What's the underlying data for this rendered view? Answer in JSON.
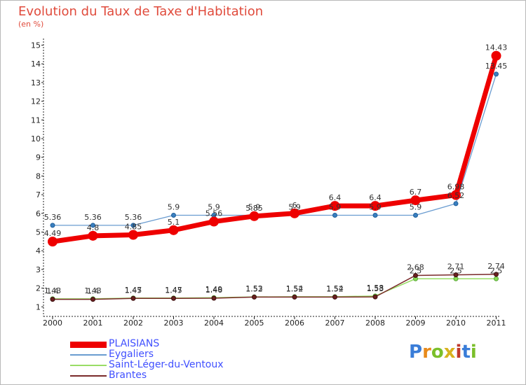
{
  "title": "Evolution du Taux de Taxe d'Habitation",
  "subtitle": "(en %)",
  "logo": {
    "text": "Proxiti",
    "colors": [
      "#3a7dd8",
      "#e88a1a",
      "#7bbf2a",
      "#d8b21e",
      "#c0392b",
      "#3a7dd8",
      "#7bbf2a"
    ]
  },
  "chart_data": {
    "type": "line",
    "title": "Evolution du Taux de Taxe d'Habitation",
    "ylabel": "(en %)",
    "xlabel": "",
    "categories": [
      "2000",
      "2001",
      "2002",
      "2003",
      "2004",
      "2005",
      "2006",
      "2007",
      "2008",
      "2009",
      "2010",
      "2011"
    ],
    "ylim": [
      0,
      15
    ],
    "yticks": [
      "1",
      "2",
      "3",
      "4",
      "5",
      "6",
      "7",
      "8",
      "9",
      "10",
      "11",
      "12",
      "13",
      "14",
      "15"
    ],
    "series": [
      {
        "name": "PLAISIANS",
        "color": "#ee0000",
        "values": [
          4.49,
          4.8,
          4.85,
          5.1,
          5.56,
          5.85,
          6,
          6.4,
          6.4,
          6.7,
          6.98,
          14.43
        ],
        "labels": [
          "4.49",
          "4.8",
          "4.85",
          "5.1",
          "5.56",
          "5.85",
          "6",
          "6.4",
          "6.4",
          "6.7",
          "6.98",
          "14.43"
        ]
      },
      {
        "name": "Eygaliers",
        "color": "#6a9cd0",
        "values": [
          5.36,
          5.36,
          5.36,
          5.9,
          5.9,
          5.9,
          5.9,
          5.9,
          5.9,
          5.9,
          6.52,
          13.45
        ],
        "labels": [
          "5.36",
          "5.36",
          "5.36",
          "5.9",
          "5.9",
          "5.9",
          "5.9",
          "5.9",
          "5.9",
          "5.9",
          "6.52",
          "13.45"
        ]
      },
      {
        "name": "Saint-Léger-du-Ventoux",
        "color": "#99dd66",
        "values": [
          1.43,
          1.43,
          1.47,
          1.47,
          1.49,
          1.53,
          1.54,
          1.54,
          1.58,
          2.5,
          2.5,
          2.5
        ],
        "labels": [
          "1.43",
          "1.43",
          "1.47",
          "1.47",
          "1.49",
          "1.53",
          "1.54",
          "1.54",
          "1.58",
          "2.5",
          "2.5",
          "2.5"
        ]
      },
      {
        "name": "Brantes",
        "color": "#7a2a2a",
        "values": [
          1.4,
          1.4,
          1.45,
          1.45,
          1.46,
          1.52,
          1.52,
          1.52,
          1.53,
          2.68,
          2.71,
          2.74
        ],
        "labels": [
          "1.4",
          "1.4",
          "1.45",
          "1.45",
          "1.46",
          "1.52",
          "1.52",
          "1.52",
          "1.53",
          "2.68",
          "2.71",
          "2.74"
        ]
      }
    ]
  }
}
